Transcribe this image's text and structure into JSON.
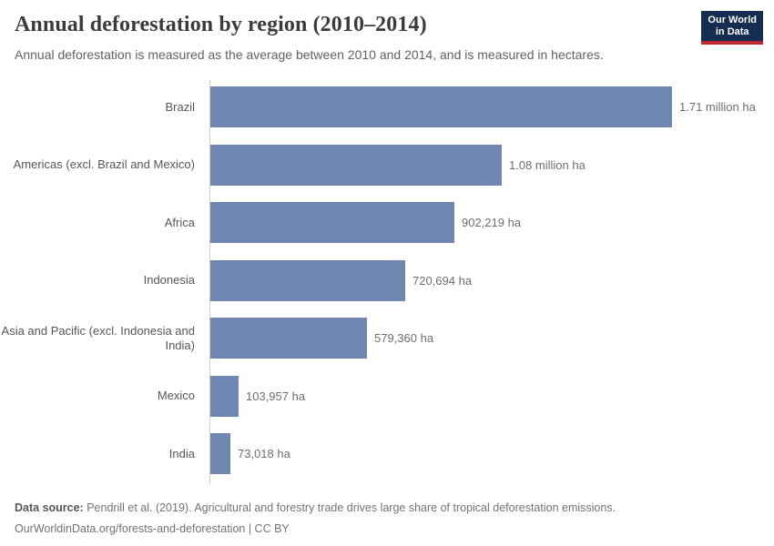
{
  "header": {
    "title": "Annual deforestation by region (2010–2014)",
    "subtitle": "Annual deforestation is measured as the average between 2010 and 2014, and is measured in hectares.",
    "logo": {
      "line1": "Our World",
      "line2": "in Data"
    }
  },
  "chart_data": {
    "type": "bar",
    "orientation": "horizontal",
    "title": "Annual deforestation by region (2010–2014)",
    "xlabel": "",
    "ylabel": "",
    "unit": "hectares",
    "xlim": [
      0,
      1710000
    ],
    "grid": false,
    "legend": "none",
    "bar_color": "#6e86b0",
    "categories": [
      "Brazil",
      "Americas (excl. Brazil and Mexico)",
      "Africa",
      "Indonesia",
      "Asia and Pacific (excl. Indonesia and India)",
      "Mexico",
      "India"
    ],
    "values": [
      1710000,
      1080000,
      902219,
      720694,
      579360,
      103957,
      73018
    ],
    "value_labels": [
      "1.71 million ha",
      "1.08 million ha",
      "902,219 ha",
      "720,694 ha",
      "579,360 ha",
      "103,957 ha",
      "73,018 ha"
    ]
  },
  "footer": {
    "source_label": "Data source:",
    "source_text": " Pendrill et al. (2019). Agricultural and forestry trade drives large share of tropical deforestation emissions.",
    "link_line": "OurWorldinData.org/forests-and-deforestation | CC BY"
  }
}
